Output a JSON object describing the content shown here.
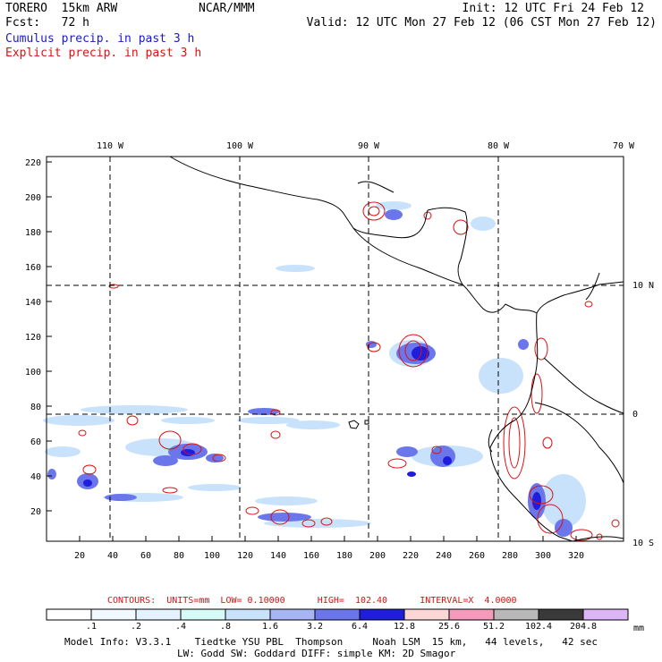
{
  "header": {
    "model": "TORERO  15km ARW",
    "org": "NCAR/MMM",
    "forecast": "Fcst:   72 h",
    "init": "Init: 12 UTC Fri 24 Feb 12",
    "valid": "Valid: 12 UTC Mon 27 Feb 12 (06 CST Mon 27 Feb 12)"
  },
  "legend": {
    "cumulus": "Cumulus precip. in past 3 h",
    "explicit": "Explicit precip. in past 3 h"
  },
  "map": {
    "lon_labels": [
      "110 W",
      "100 W",
      "90 W",
      "80 W",
      "70 W"
    ],
    "lat_labels": [
      "10 N",
      "0",
      "10 S"
    ],
    "y_ticks": [
      "220",
      "200",
      "180",
      "160",
      "140",
      "120",
      "100",
      "80",
      "60",
      "40",
      "20"
    ],
    "x_ticks": [
      "20",
      "40",
      "60",
      "80",
      "100",
      "120",
      "140",
      "160",
      "180",
      "200",
      "220",
      "240",
      "260",
      "280",
      "300",
      "320"
    ],
    "colors": {
      "coast": "#000000",
      "grid": "#000000",
      "explicit": "#dd1111"
    }
  },
  "contours": {
    "label": "CONTOURS:  UNITS=mm  LOW= 0.10000      HIGH=  102.40      INTERVAL=X  4.0000"
  },
  "colorbar": {
    "labels": [
      ".1",
      ".2",
      ".4",
      ".8",
      "1.6",
      "3.2",
      "6.4",
      "12.8",
      "25.6",
      "51.2",
      "102.4",
      "204.8"
    ],
    "colors": [
      "#ffffff",
      "#f2f8ff",
      "#e4f2ff",
      "#d6fbf6",
      "#c8e2fc",
      "#a6b6f4",
      "#6a76ea",
      "#1e1edc",
      "#fcd6d6",
      "#f49aba",
      "#b8b8b8",
      "#3a3a3a",
      "#dcb6f6"
    ],
    "unit": "mm"
  },
  "model_info": {
    "line1": "Model Info: V3.3.1    Tiedtke YSU PBL  Thompson     Noah LSM  15 km,   44 levels,   42 sec",
    "line2": "LW: Godd SW: Goddard DIFF: simple KM: 2D Smagor"
  }
}
